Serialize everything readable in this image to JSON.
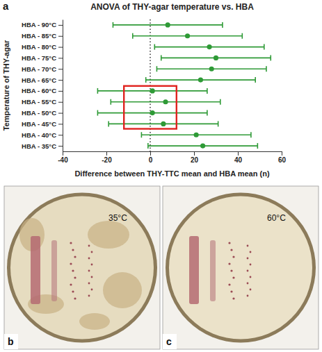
{
  "chart_data": {
    "type": "errorbar",
    "panel_label": "a",
    "title": "ANOVA of THY-agar temperature vs. HBA",
    "x_label": "Difference between THY-TTC mean and HBA mean (n)",
    "y_label": "Temperature of THY-agar",
    "orientation": "horizontal",
    "categories": [
      "HBA - 90°C",
      "HBA - 85°C",
      "HBA - 80°C",
      "HBA - 75°C",
      "HBA - 70°C",
      "HBA - 65°C",
      "HBA - 60°C",
      "HBA - 55°C",
      "HBA - 50°C",
      "HBA - 45°C",
      "HBA - 40°C",
      "HBA - 35°C"
    ],
    "values": [
      8,
      17,
      27,
      30,
      28,
      23,
      1,
      7,
      1,
      6,
      21,
      24
    ],
    "errors": [
      25,
      25,
      25,
      25,
      25,
      25,
      25,
      25,
      25,
      25,
      25,
      25
    ],
    "xlim": [
      -40,
      60
    ],
    "xticks": [
      -40,
      -20,
      0,
      20,
      40,
      60
    ],
    "reference_line": 0,
    "highlight": {
      "categories": [
        "HBA - 60°C",
        "HBA - 45°C"
      ],
      "x": [
        -12,
        12
      ],
      "color": "#e0231f"
    },
    "color": "#2e9a36",
    "marker": "circle",
    "grid": false
  },
  "images": [
    {
      "panel_label": "b",
      "label": "35°C"
    },
    {
      "panel_label": "c",
      "label": "60°C"
    }
  ]
}
